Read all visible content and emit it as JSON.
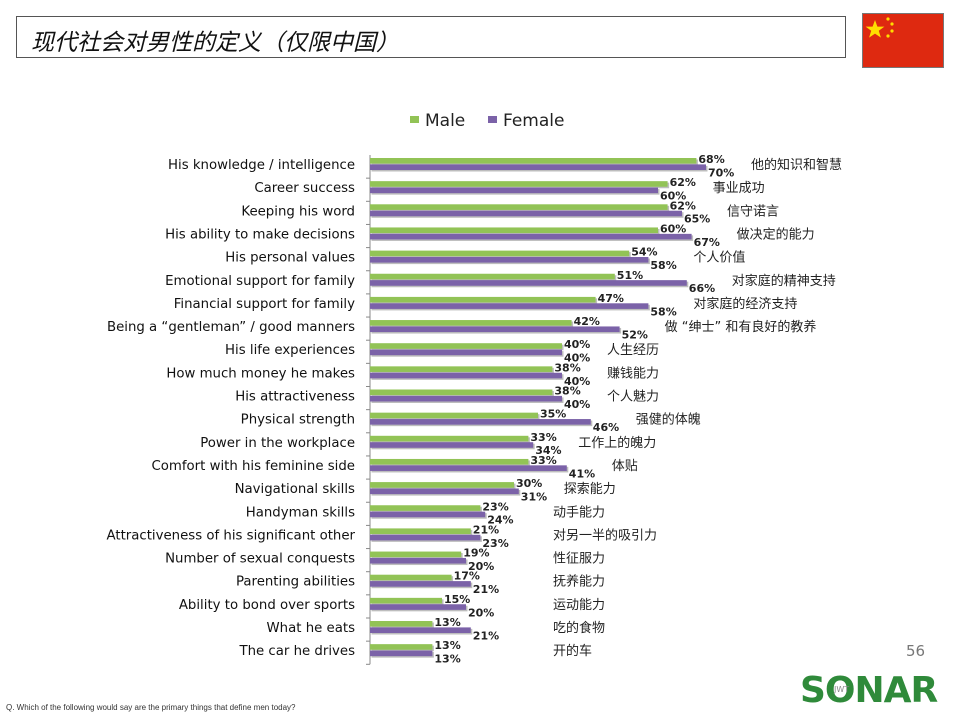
{
  "title": "现代社会对男性的定义（仅限中国）",
  "page_number": "56",
  "footnote": "Q. Which of the following would say are the primary things that define men today?",
  "logo": {
    "text": "SONAR",
    "sub": "JWT"
  },
  "colors": {
    "male": "#92c356",
    "female": "#7b62a8",
    "flag": "#de2910",
    "star": "#ffde00"
  },
  "chart_data": {
    "type": "bar",
    "orientation": "horizontal",
    "xlim": [
      0,
      100
    ],
    "legend_position": "top",
    "categories": [
      "His knowledge / intelligence",
      "Career success",
      "Keeping his word",
      "His ability to make decisions",
      "His personal values",
      "Emotional support for family",
      "Financial support for family",
      "Being a “gentleman” / good manners",
      "His life experiences",
      "How much money he makes",
      "His attractiveness",
      "Physical strength",
      "Power in the workplace",
      "Comfort with his feminine side",
      "Navigational skills",
      "Handyman skills",
      "Attractiveness of his significant other",
      "Number of sexual conquests",
      "Parenting abilities",
      "Ability to bond over sports",
      "What he eats",
      "The car he drives"
    ],
    "categories_zh": [
      "他的知识和智慧",
      "事业成功",
      "信守诺言",
      "做决定的能力",
      "个人价值",
      "对家庭的精神支持",
      "对家庭的经济支持",
      "做 “绅士” 和有良好的教养",
      "人生经历",
      "赚钱能力",
      "个人魅力",
      "强健的体魄",
      "工作上的魄力",
      "体贴",
      "探索能力",
      "动手能力",
      "对另一半的吸引力",
      "性征服力",
      "抚养能力",
      "运动能力",
      "吃的食物",
      "开的车"
    ],
    "series": [
      {
        "name": "Male",
        "values": [
          68,
          62,
          62,
          60,
          54,
          51,
          47,
          42,
          40,
          38,
          38,
          35,
          33,
          33,
          30,
          23,
          21,
          19,
          17,
          15,
          13,
          13
        ]
      },
      {
        "name": "Female",
        "values": [
          70,
          60,
          65,
          67,
          58,
          66,
          58,
          52,
          40,
          40,
          40,
          46,
          34,
          41,
          31,
          24,
          23,
          20,
          21,
          20,
          21,
          13
        ]
      }
    ]
  }
}
